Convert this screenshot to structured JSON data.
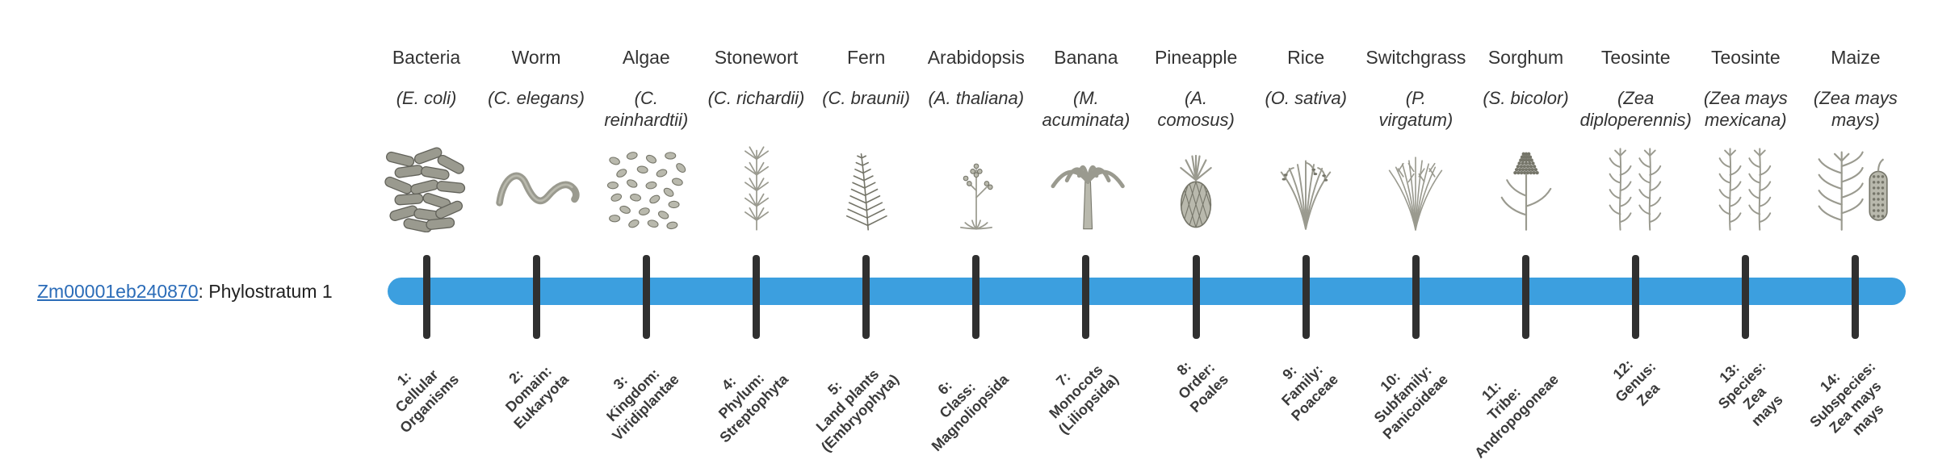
{
  "gene": {
    "id": "Zm00001eb240870",
    "suffix": ": Phylostratum 1"
  },
  "colors": {
    "bar": "#3C9FDF",
    "tick": "#303030",
    "link": "#2B6CB8"
  },
  "taxa": [
    {
      "common": "Bacteria",
      "sci": "(E. coli)",
      "icon": "bacteria-icon",
      "stratum": "1:\nCellular\nOrganisms"
    },
    {
      "common": "Worm",
      "sci": "(C. elegans)",
      "icon": "worm-icon",
      "stratum": "2:\nDomain:\nEukaryota"
    },
    {
      "common": "Algae",
      "sci": "(C.\nreinhardtii)",
      "icon": "algae-icon",
      "stratum": "3:\nKingdom:\nViridiplantae"
    },
    {
      "common": "Stonewort",
      "sci": "(C. richardii)",
      "icon": "stonewort-icon",
      "stratum": "4:\nPhylum:\nStreptophyta"
    },
    {
      "common": "Fern",
      "sci": "(C. braunii)",
      "icon": "fern-icon",
      "stratum": "5:\nLand plants\n(Embryophyta)"
    },
    {
      "common": "Arabidopsis",
      "sci": "(A. thaliana)",
      "icon": "arabidopsis-icon",
      "stratum": "6:\nClass:\nMagnoliopsida"
    },
    {
      "common": "Banana",
      "sci": "(M.\nacuminata)",
      "icon": "banana-icon",
      "stratum": "7:\nMonocots\n(Liliopsida)"
    },
    {
      "common": "Pineapple",
      "sci": "(A.\ncomosus)",
      "icon": "pineapple-icon",
      "stratum": "8:\nOrder:\nPoales"
    },
    {
      "common": "Rice",
      "sci": "(O. sativa)",
      "icon": "rice-icon",
      "stratum": "9:\nFamily:\nPoaceae"
    },
    {
      "common": "Switchgrass",
      "sci": "(P.\nvirgatum)",
      "icon": "switchgrass-icon",
      "stratum": "10:\nSubfamily:\nPanicoideae"
    },
    {
      "common": "Sorghum",
      "sci": "(S. bicolor)",
      "icon": "sorghum-icon",
      "stratum": "11:\nTribe:\nAndropogoneae"
    },
    {
      "common": "Teosinte",
      "sci": "(Zea\ndiploperennis)",
      "icon": "teosinte-icon",
      "stratum": "12:\nGenus:\nZea"
    },
    {
      "common": "Teosinte",
      "sci": "(Zea mays\nmexicana)",
      "icon": "teosinte-icon",
      "stratum": "13:\nSpecies:\nZea\nmays"
    },
    {
      "common": "Maize",
      "sci": "(Zea mays\nmays)",
      "icon": "maize-icon",
      "stratum": "14:\nSubspecies:\nZea mays\nmays"
    }
  ]
}
